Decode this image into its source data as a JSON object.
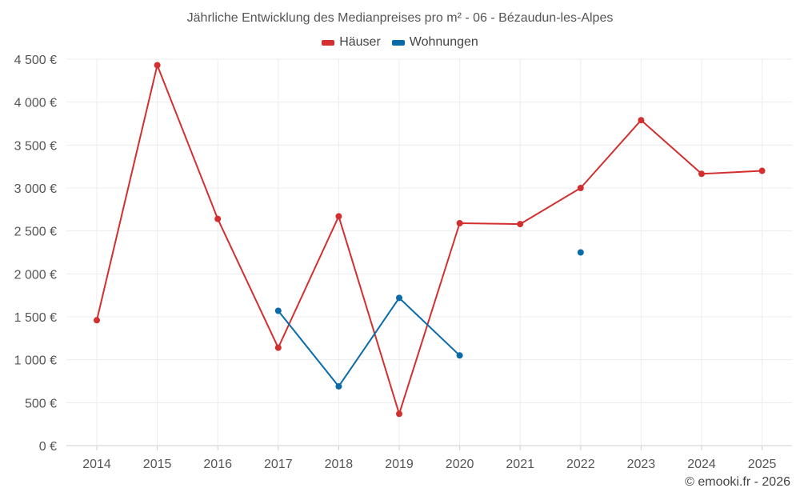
{
  "chart_data": {
    "type": "line",
    "title": "Jährliche Entwicklung des Medianpreises pro m² - 06 - Bézaudun-les-Alpes",
    "categories": [
      "2014",
      "2015",
      "2016",
      "2017",
      "2018",
      "2019",
      "2020",
      "2021",
      "2022",
      "2023",
      "2024",
      "2025"
    ],
    "series": [
      {
        "name": "Häuser",
        "color": "#d32f2f",
        "values": [
          1460,
          4430,
          2640,
          1140,
          2670,
          370,
          2590,
          2580,
          3000,
          3790,
          3165,
          3200
        ]
      },
      {
        "name": "Wohnungen",
        "color": "#0a6ba8",
        "values": [
          null,
          null,
          null,
          1570,
          690,
          1720,
          1050,
          null,
          2250,
          null,
          null,
          null
        ]
      }
    ],
    "y_ticks": [
      0,
      500,
      1000,
      1500,
      2000,
      2500,
      3000,
      3500,
      4000,
      4500
    ],
    "y_tick_labels": [
      "0 €",
      "500 €",
      "1 000 €",
      "1 500 €",
      "2 000 €",
      "2 500 €",
      "3 000 €",
      "3 500 €",
      "4 000 €",
      "4 500 €"
    ],
    "ylim": [
      0,
      4500
    ],
    "xlabel": "",
    "ylabel": "",
    "grid": true,
    "legend_position": "top-center"
  },
  "footer": "© emooki.fr - 2026"
}
